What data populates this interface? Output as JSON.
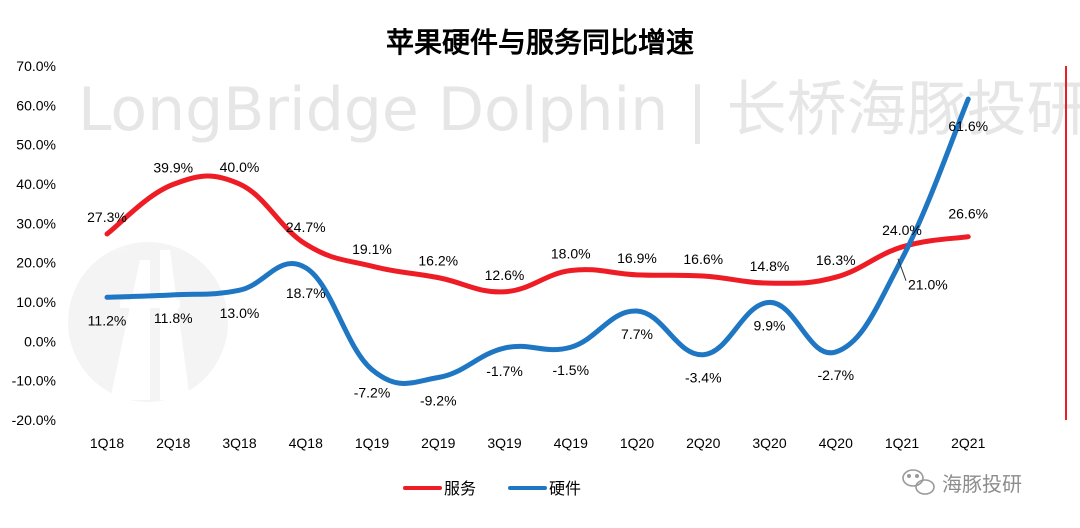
{
  "chart_data": {
    "type": "line",
    "title": "苹果硬件与服务同比增速",
    "categories": [
      "1Q18",
      "2Q18",
      "3Q18",
      "4Q18",
      "1Q19",
      "2Q19",
      "3Q19",
      "4Q19",
      "1Q20",
      "2Q20",
      "3Q20",
      "4Q20",
      "1Q21",
      "2Q21"
    ],
    "ylim": [
      -20,
      70
    ],
    "yticks": [
      -20,
      -10,
      0,
      10,
      20,
      30,
      40,
      50,
      60,
      70
    ],
    "ytick_labels": [
      "-20.0%",
      "-10.0%",
      "0.0%",
      "10.0%",
      "20.0%",
      "30.0%",
      "40.0%",
      "50.0%",
      "60.0%",
      "70.0%"
    ],
    "series": [
      {
        "name": "服务",
        "color": "#ee1c25",
        "values": [
          27.3,
          39.9,
          40.0,
          24.7,
          19.1,
          16.2,
          12.6,
          18.0,
          16.9,
          16.6,
          14.8,
          16.3,
          24.0,
          26.6
        ],
        "labels": [
          "27.3%",
          "39.9%",
          "40.0%",
          "24.7%",
          "19.1%",
          "16.2%",
          "12.6%",
          "18.0%",
          "16.9%",
          "16.6%",
          "14.8%",
          "16.3%",
          "24.0%",
          "26.6%"
        ]
      },
      {
        "name": "硬件",
        "color": "#1f77c4",
        "values": [
          11.2,
          11.8,
          13.0,
          18.7,
          -7.2,
          -9.2,
          -1.7,
          -1.5,
          7.7,
          -3.4,
          9.9,
          -2.7,
          21.0,
          61.6
        ],
        "labels": [
          "11.2%",
          "11.8%",
          "13.0%",
          "18.7%",
          "-7.2%",
          "-9.2%",
          "-1.7%",
          "-1.5%",
          "7.7%",
          "-3.4%",
          "9.9%",
          "-2.7%",
          "21.0%",
          "61.6%"
        ]
      }
    ],
    "grid": false,
    "legend": "bottom-center"
  },
  "watermark": {
    "text": "LongBridge Dolphin | 长桥海豚投研"
  },
  "branding": {
    "wechat_text": "海豚投研"
  },
  "icons": {
    "logo": "longbridge-logo-icon",
    "wechat": "wechat-icon"
  },
  "colors": {
    "frame_accent": "#ee1c25",
    "watermark": "#e6e6e6"
  }
}
